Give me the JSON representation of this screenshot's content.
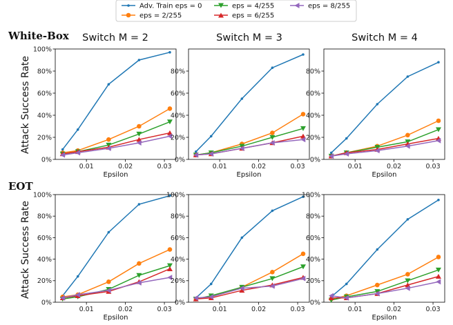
{
  "legend": {
    "items": [
      "Adv. Train eps = 0",
      "eps = 2/255",
      "eps = 4/255",
      "eps = 6/255",
      "eps = 8/255"
    ]
  },
  "row_labels": [
    "White-Box",
    "EOT"
  ],
  "column_titles": [
    "Switch M = 2",
    "Switch M = 3",
    "Switch M = 4"
  ],
  "series_styles": [
    {
      "color": "#1f77b4",
      "marker": "point"
    },
    {
      "color": "#ff7f0e",
      "marker": "circle"
    },
    {
      "color": "#2ca02c",
      "marker": "triangle-down"
    },
    {
      "color": "#d62728",
      "marker": "triangle-up"
    },
    {
      "color": "#9467bd",
      "marker": "triangle-left"
    }
  ],
  "chart_data": [
    {
      "type": "line",
      "row": "White-Box",
      "title": "Switch M = 2",
      "xlabel": "Epsilon",
      "ylabel": "Attack Success Rate",
      "x": [
        0.0039,
        0.0078,
        0.0157,
        0.0235,
        0.0314
      ],
      "xlim": [
        0.002,
        0.033
      ],
      "ylim": [
        0,
        100
      ],
      "xticks": [
        "0.01",
        "0.02",
        "0.03"
      ],
      "yticks": [
        "0%",
        "20%",
        "40%",
        "60%",
        "80%",
        "100%"
      ],
      "series": [
        {
          "name": "Adv. Train eps = 0",
          "values": [
            9,
            27,
            68,
            90,
            97
          ]
        },
        {
          "name": "eps = 2/255",
          "values": [
            6,
            8,
            18,
            30,
            46
          ]
        },
        {
          "name": "eps = 4/255",
          "values": [
            5,
            7,
            13,
            23,
            34
          ]
        },
        {
          "name": "eps = 6/255",
          "values": [
            5,
            7,
            11,
            18,
            24
          ]
        },
        {
          "name": "eps = 8/255",
          "values": [
            4,
            6,
            10,
            15,
            21
          ]
        }
      ]
    },
    {
      "type": "line",
      "row": "White-Box",
      "title": "Switch M = 3",
      "xlabel": "Epsilon",
      "ylabel": "",
      "x": [
        0.0039,
        0.0078,
        0.0157,
        0.0235,
        0.0314
      ],
      "xlim": [
        0.002,
        0.033
      ],
      "ylim": [
        0,
        100
      ],
      "xticks": [
        "0.01",
        "0.02",
        "0.03"
      ],
      "yticks": [
        "0%",
        "20%",
        "40%",
        "60%",
        "80%"
      ],
      "series": [
        {
          "name": "Adv. Train eps = 0",
          "values": [
            7,
            21,
            55,
            83,
            95
          ]
        },
        {
          "name": "eps = 2/255",
          "values": [
            4,
            6,
            14,
            24,
            41
          ]
        },
        {
          "name": "eps = 4/255",
          "values": [
            4,
            6,
            12,
            20,
            28
          ]
        },
        {
          "name": "eps = 6/255",
          "values": [
            4,
            5,
            10,
            15,
            21
          ]
        },
        {
          "name": "eps = 8/255",
          "values": [
            4,
            5,
            10,
            15,
            18
          ]
        }
      ]
    },
    {
      "type": "line",
      "row": "White-Box",
      "title": "Switch M = 4",
      "xlabel": "Epsilon",
      "ylabel": "",
      "x": [
        0.0039,
        0.0078,
        0.0157,
        0.0235,
        0.0314
      ],
      "xlim": [
        0.002,
        0.033
      ],
      "ylim": [
        0,
        100
      ],
      "xticks": [
        "0.01",
        "0.02",
        "0.03"
      ],
      "yticks": [
        "0%",
        "20%",
        "40%",
        "60%",
        "80%"
      ],
      "series": [
        {
          "name": "Adv. Train eps = 0",
          "values": [
            6,
            19,
            50,
            75,
            88
          ]
        },
        {
          "name": "eps = 2/255",
          "values": [
            3,
            6,
            12,
            22,
            35
          ]
        },
        {
          "name": "eps = 4/255",
          "values": [
            3,
            6,
            11,
            16,
            27
          ]
        },
        {
          "name": "eps = 6/255",
          "values": [
            3,
            6,
            9,
            14,
            19
          ]
        },
        {
          "name": "eps = 8/255",
          "values": [
            3,
            5,
            8,
            12,
            17
          ]
        }
      ]
    },
    {
      "type": "line",
      "row": "EOT",
      "title": "",
      "xlabel": "Epsilon",
      "ylabel": "Attack Success Rate",
      "x": [
        0.0039,
        0.0078,
        0.0157,
        0.0235,
        0.0314
      ],
      "xlim": [
        0.002,
        0.033
      ],
      "ylim": [
        0,
        100
      ],
      "xticks": [
        "0.01",
        "0.02",
        "0.03"
      ],
      "yticks": [
        "0%",
        "20%",
        "40%",
        "60%",
        "80%",
        "100%"
      ],
      "series": [
        {
          "name": "Adv. Train eps = 0",
          "values": [
            6,
            24,
            65,
            91,
            99
          ]
        },
        {
          "name": "eps = 2/255",
          "values": [
            5,
            7,
            19,
            36,
            49
          ]
        },
        {
          "name": "eps = 4/255",
          "values": [
            3,
            5,
            12,
            25,
            34
          ]
        },
        {
          "name": "eps = 6/255",
          "values": [
            4,
            6,
            10,
            19,
            31
          ]
        },
        {
          "name": "eps = 8/255",
          "values": [
            4,
            7,
            11,
            18,
            23
          ]
        }
      ]
    },
    {
      "type": "line",
      "row": "EOT",
      "title": "",
      "xlabel": "",
      "ylabel": "",
      "x": [
        0.0039,
        0.0078,
        0.0157,
        0.0235,
        0.0314
      ],
      "xlim": [
        0.002,
        0.033
      ],
      "ylim": [
        0,
        100
      ],
      "xticks": [
        "0.01",
        "0.02",
        "0.03"
      ],
      "yticks": [
        "0%",
        "20%",
        "40%",
        "60%",
        "80%",
        "100%"
      ],
      "series": [
        {
          "name": "Adv. Train eps = 0",
          "values": [
            4,
            17,
            60,
            85,
            98
          ]
        },
        {
          "name": "eps = 2/255",
          "values": [
            3,
            5,
            14,
            28,
            45
          ]
        },
        {
          "name": "eps = 4/255",
          "values": [
            3,
            6,
            14,
            22,
            33
          ]
        },
        {
          "name": "eps = 6/255",
          "values": [
            3,
            4,
            11,
            16,
            23
          ]
        },
        {
          "name": "eps = 8/255",
          "values": [
            4,
            5,
            13,
            15,
            22
          ]
        }
      ]
    },
    {
      "type": "line",
      "row": "EOT",
      "title": "",
      "xlabel": "Epsilon",
      "ylabel": "",
      "x": [
        0.0039,
        0.0078,
        0.0157,
        0.0235,
        0.0314
      ],
      "xlim": [
        0.002,
        0.033
      ],
      "ylim": [
        0,
        100
      ],
      "xticks": [
        "0.01",
        "0.02",
        "0.03"
      ],
      "yticks": [
        "0%",
        "20%",
        "40%",
        "60%",
        "80%",
        "100%"
      ],
      "series": [
        {
          "name": "Adv. Train eps = 0",
          "values": [
            5,
            17,
            49,
            77,
            95
          ]
        },
        {
          "name": "eps = 2/255",
          "values": [
            3,
            6,
            16,
            26,
            42
          ]
        },
        {
          "name": "eps = 4/255",
          "values": [
            2,
            5,
            10,
            20,
            30
          ]
        },
        {
          "name": "eps = 6/255",
          "values": [
            4,
            4,
            8,
            16,
            24
          ]
        },
        {
          "name": "eps = 8/255",
          "values": [
            6,
            4,
            8,
            13,
            19
          ]
        }
      ]
    }
  ]
}
